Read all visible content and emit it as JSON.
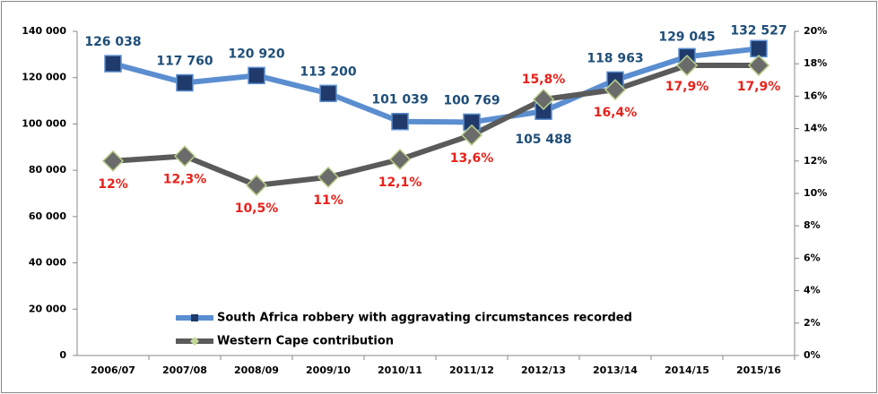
{
  "chart_data": {
    "type": "line",
    "categories": [
      "2006/07",
      "2007/08",
      "2008/09",
      "2009/10",
      "2010/11",
      "2011/12",
      "2012/13",
      "2013/14",
      "2014/15",
      "2015/16"
    ],
    "series": [
      {
        "name": "South Africa robbery with aggravating circumstances recorded",
        "color": "#5b8ed0",
        "marker_color": "#1f3a6b",
        "label_color": "#1f4e79",
        "values": [
          126038,
          117760,
          120920,
          113200,
          101039,
          100769,
          105488,
          118963,
          129045,
          132527
        ],
        "value_labels": [
          "126 038",
          "117 760",
          "120 920",
          "113 200",
          "101 039",
          "100 769",
          "105 488",
          "118 963",
          "129 045",
          "132 527"
        ]
      },
      {
        "name": "Western Cape contribution",
        "color": "#5a5a5a",
        "marker_color": "#6b6b6b",
        "label_color": "#e8221b",
        "axis": "y2",
        "values": [
          12,
          12.3,
          10.5,
          11,
          12.1,
          13.6,
          15.8,
          16.4,
          17.9,
          17.9
        ],
        "value_labels": [
          "12%",
          "12,3%",
          "10,5%",
          "11%",
          "12,1%",
          "13,6%",
          "15,8%",
          "16,4%",
          "17,9%",
          "17,9%"
        ]
      }
    ],
    "ylim": [
      0,
      140000
    ],
    "yticks": [
      0,
      {
        "value": 20000,
        "label": "20 000"
      },
      {
        "value": 40000,
        "label": "40 000"
      },
      {
        "value": 60000,
        "label": "60 000"
      },
      {
        "value": 80000,
        "label": "80 000"
      },
      {
        "value": 100000,
        "label": "100 000"
      },
      {
        "value": 120000,
        "label": "120 000"
      },
      {
        "value": 140000,
        "label": "140 000"
      }
    ],
    "y2lim": [
      0,
      20
    ],
    "y2ticks": [
      {
        "value": 0,
        "label": "0%"
      },
      {
        "value": 2,
        "label": "2%"
      },
      {
        "value": 4,
        "label": "4%"
      },
      {
        "value": 6,
        "label": "6%"
      },
      {
        "value": 8,
        "label": "8%"
      },
      {
        "value": 10,
        "label": "10%"
      },
      {
        "value": 12,
        "label": "12%"
      },
      {
        "value": 14,
        "label": "14%"
      },
      {
        "value": 16,
        "label": "16%"
      },
      {
        "value": 18,
        "label": "18%"
      },
      {
        "value": 20,
        "label": "20%"
      }
    ],
    "legend": "lower left"
  }
}
